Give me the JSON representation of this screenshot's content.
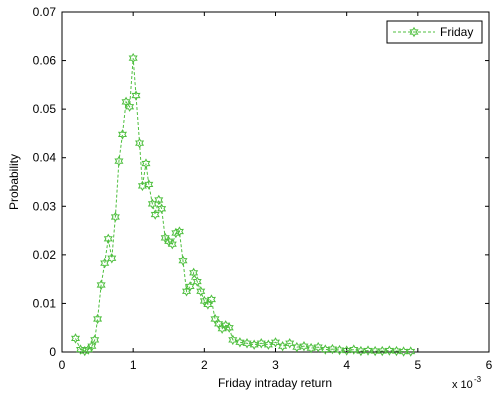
{
  "chart_data": {
    "type": "line",
    "xlabel": "Friday intraday return",
    "ylabel": "Probability",
    "x_multiplier_label": "x 10",
    "x_multiplier_exp": "-3",
    "xlim": [
      0,
      6
    ],
    "ylim": [
      0,
      0.07
    ],
    "xticks": [
      0,
      1,
      2,
      3,
      4,
      5,
      6
    ],
    "xtick_labels": [
      "0",
      "1",
      "2",
      "3",
      "4",
      "5",
      "6"
    ],
    "yticks": [
      0,
      0.01,
      0.02,
      0.03,
      0.04,
      0.05,
      0.06,
      0.07
    ],
    "ytick_labels": [
      "0",
      "0.01",
      "0.02",
      "0.03",
      "0.04",
      "0.05",
      "0.06",
      "0.07"
    ],
    "grid": false,
    "legend_position": "top-right",
    "series": [
      {
        "name": "Friday",
        "color": "#4fbf3f",
        "line_style": "dashed",
        "marker": "hexagram",
        "x": [
          0.19,
          0.26,
          0.32,
          0.37,
          0.42,
          0.46,
          0.5,
          0.55,
          0.6,
          0.65,
          0.7,
          0.75,
          0.8,
          0.85,
          0.9,
          0.95,
          1.0,
          1.04,
          1.09,
          1.13,
          1.18,
          1.22,
          1.27,
          1.31,
          1.36,
          1.4,
          1.45,
          1.5,
          1.55,
          1.6,
          1.65,
          1.7,
          1.75,
          1.8,
          1.85,
          1.9,
          1.95,
          2.0,
          2.05,
          2.1,
          2.15,
          2.2,
          2.25,
          2.3,
          2.35,
          2.4,
          2.5,
          2.6,
          2.7,
          2.8,
          2.9,
          3.0,
          3.1,
          3.2,
          3.3,
          3.4,
          3.5,
          3.6,
          3.7,
          3.8,
          3.9,
          4.0,
          4.1,
          4.2,
          4.3,
          4.4,
          4.5,
          4.6,
          4.7,
          4.8,
          4.9
        ],
        "y": [
          0.0028,
          0.0005,
          0.0002,
          0.0005,
          0.0012,
          0.0025,
          0.0068,
          0.0138,
          0.0183,
          0.0233,
          0.0193,
          0.0278,
          0.0393,
          0.0448,
          0.0515,
          0.0505,
          0.0605,
          0.0528,
          0.043,
          0.0342,
          0.0388,
          0.0345,
          0.0305,
          0.0283,
          0.0313,
          0.0295,
          0.0235,
          0.0228,
          0.0222,
          0.0245,
          0.0248,
          0.0188,
          0.0125,
          0.0135,
          0.0163,
          0.0145,
          0.0125,
          0.0105,
          0.0098,
          0.0108,
          0.0068,
          0.0058,
          0.0048,
          0.0055,
          0.005,
          0.0025,
          0.002,
          0.0018,
          0.0015,
          0.0018,
          0.0015,
          0.002,
          0.0012,
          0.0018,
          0.001,
          0.0012,
          0.0008,
          0.001,
          0.0005,
          0.0006,
          0.0004,
          0.0003,
          0.0005,
          0.0002,
          0.0003,
          0.0002,
          0.0002,
          0.0003,
          0.0002,
          0.0001,
          0.0001
        ]
      }
    ]
  }
}
